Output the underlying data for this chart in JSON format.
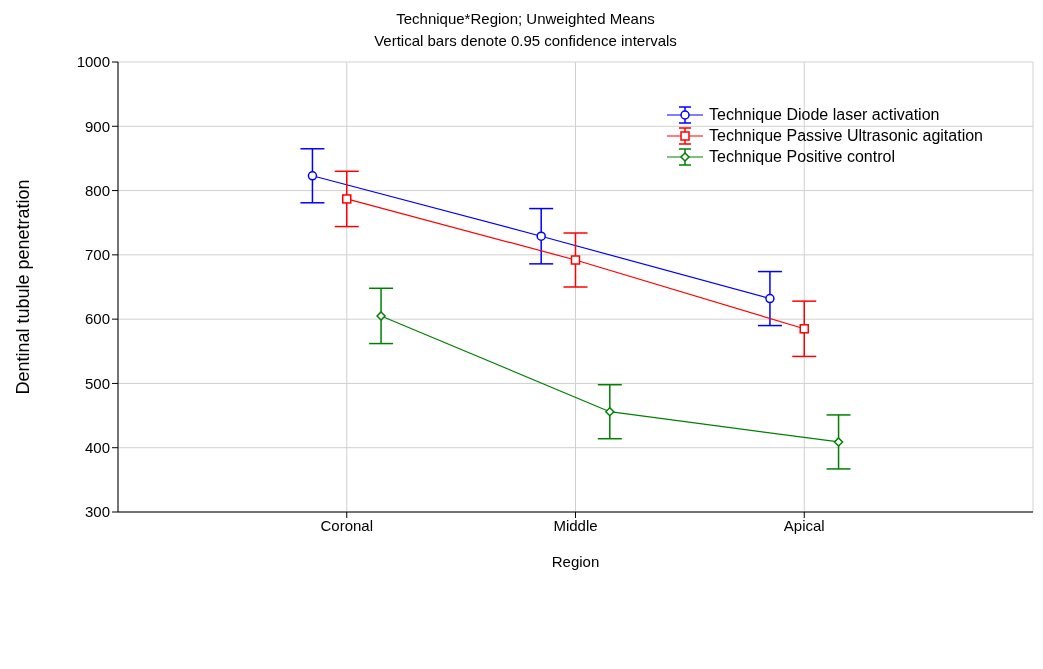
{
  "chart_data": {
    "type": "line",
    "title": "Technique*Region; Unweighted Means",
    "subtitle": "Vertical bars denote 0.95 confidence intervals",
    "xlabel": "Region",
    "ylabel": "Dentinal tubule penetration",
    "categories": [
      "Coronal",
      "Middle",
      "Apical"
    ],
    "series": [
      {
        "name": "Technique Diode laser activation",
        "color": "#0000ff",
        "marker": "circle",
        "values": [
          823,
          729,
          632
        ],
        "errors": [
          42,
          43,
          42
        ]
      },
      {
        "name": "Technique Passive Ultrasonic agitation",
        "color": "#ff0000",
        "marker": "square",
        "values": [
          787,
          692,
          585
        ],
        "errors": [
          43,
          42,
          43
        ]
      },
      {
        "name": "Technique Positive control",
        "color": "#008000",
        "marker": "diamond",
        "values": [
          605,
          456,
          409
        ],
        "errors": [
          43,
          42,
          42
        ]
      }
    ],
    "ylim": [
      300,
      1000
    ],
    "yticks": [
      300,
      400,
      500,
      600,
      700,
      800,
      900,
      1000
    ],
    "grid": true,
    "legend": "top right"
  }
}
